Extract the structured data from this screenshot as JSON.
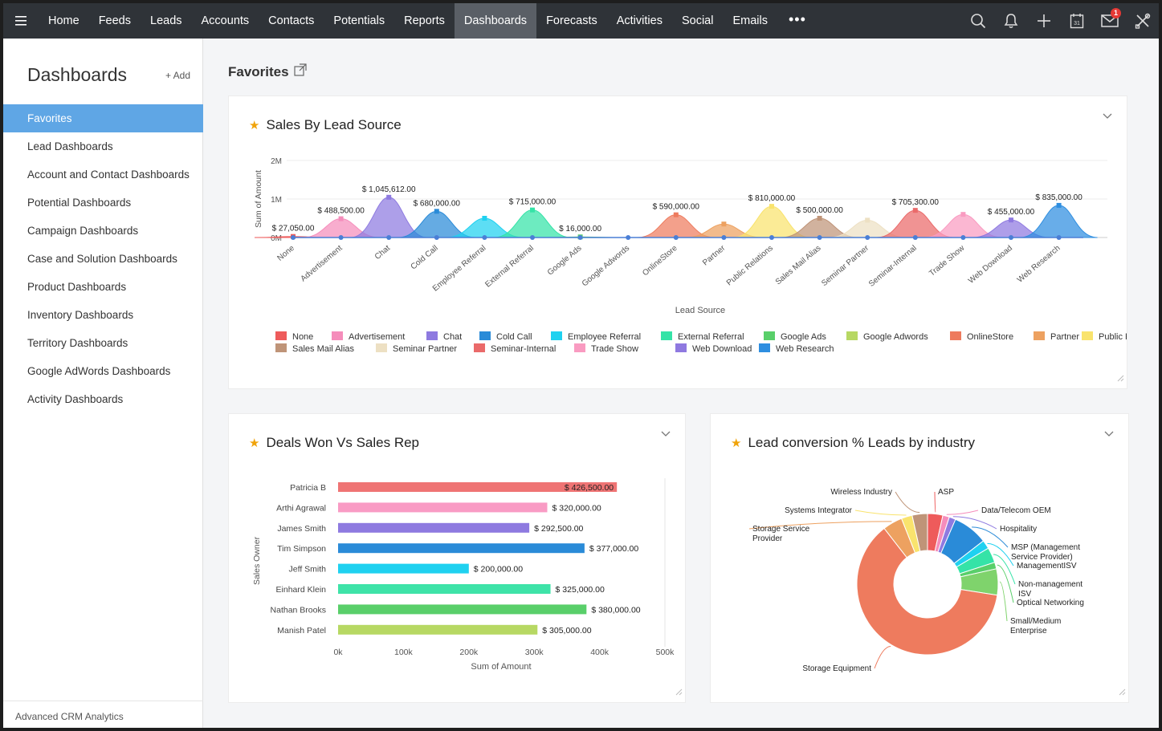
{
  "nav": {
    "items": [
      {
        "label": "Home",
        "key": "home"
      },
      {
        "label": "Feeds",
        "key": "feeds"
      },
      {
        "label": "Leads",
        "key": "leads"
      },
      {
        "label": "Accounts",
        "key": "accounts"
      },
      {
        "label": "Contacts",
        "key": "contacts"
      },
      {
        "label": "Potentials",
        "key": "potentials"
      },
      {
        "label": "Reports",
        "key": "reports"
      },
      {
        "label": "Dashboards",
        "key": "dashboards",
        "active": true
      },
      {
        "label": "Forecasts",
        "key": "forecasts"
      },
      {
        "label": "Activities",
        "key": "activities"
      },
      {
        "label": "Social",
        "key": "social"
      },
      {
        "label": "Emails",
        "key": "emails"
      }
    ],
    "more": "•••",
    "mail_badge": "1",
    "icons": [
      "search-icon",
      "bell-icon",
      "plus-icon",
      "calendar-icon",
      "mail-icon",
      "tools-icon"
    ]
  },
  "sidebar": {
    "title": "Dashboards",
    "add_label": "+ Add",
    "items": [
      {
        "label": "Favorites",
        "active": true
      },
      {
        "label": "Lead Dashboards"
      },
      {
        "label": "Account and Contact Dashboards"
      },
      {
        "label": "Potential Dashboards"
      },
      {
        "label": "Campaign Dashboards"
      },
      {
        "label": "Case and Solution Dashboards"
      },
      {
        "label": "Product Dashboards"
      },
      {
        "label": "Inventory Dashboards"
      },
      {
        "label": "Territory Dashboards"
      },
      {
        "label": "Google AdWords Dashboards"
      },
      {
        "label": "Activity Dashboards"
      }
    ],
    "footer": "Advanced CRM Analytics"
  },
  "main": {
    "title": "Favorites"
  },
  "colors": {
    "accent": "#5fa6e5",
    "star": "#f0a30a",
    "nav_bg": "#2f3338"
  },
  "chart_data": [
    {
      "type": "area",
      "title": "Sales By Lead Source",
      "xlabel": "Lead Source",
      "ylabel": "Sum of Amount",
      "yticks": [
        "0M",
        "1M",
        "2M"
      ],
      "ylim": [
        0,
        2000000
      ],
      "grid": true,
      "legend_position": "bottom",
      "categories": [
        "None",
        "Advertisement",
        "Chat",
        "Cold Call",
        "Employee Referral",
        "External Referral",
        "Google Ads",
        "Google Adwords",
        "OnlineStore",
        "Partner",
        "Public Relations",
        "Sales Mail Alias",
        "Seminar Partner",
        "Seminar-Internal",
        "Trade Show",
        "Web Download",
        "Web Research"
      ],
      "values": [
        27050,
        488500,
        1045612,
        680000,
        500000,
        715000,
        16000,
        0,
        590000,
        350000,
        810000,
        500000,
        450000,
        705300,
        600000,
        455000,
        835000
      ],
      "labels": [
        "$ 27,050.00",
        "$ 488,500.00",
        "$ 1,045,612.00",
        "$ 680,000.00",
        "",
        "$ 715,000.00",
        "$ 16,000.00",
        "",
        "$ 590,000.00",
        "",
        "$ 810,000.00",
        "$ 500,000.00",
        "",
        "$ 705,300.00",
        "",
        "$ 455,000.00",
        "$ 835,000.00"
      ],
      "colors": [
        "#ee5b5b",
        "#f58dbb",
        "#8e7ae0",
        "#2a8bd8",
        "#1fd1f0",
        "#35e3a7",
        "#59cf6a",
        "#b7d863",
        "#ee7b5e",
        "#eda160",
        "#f9e36d",
        "#bf9478",
        "#ede0c3",
        "#ea6a6a",
        "#f99bc1",
        "#8f79e0",
        "#2e8ee0"
      ],
      "legend": [
        "None",
        "Advertisement",
        "Chat",
        "Cold Call",
        "Employee Referral",
        "External Referral",
        "Google Ads",
        "Google Adwords",
        "OnlineStore",
        "Partner",
        "Public Relations",
        "Sales Mail Alias",
        "Seminar Partner",
        "Seminar-Internal",
        "Trade Show",
        "Web Download",
        "Web Research"
      ]
    },
    {
      "type": "bar",
      "orientation": "horizontal",
      "title": "Deals Won Vs Sales Rep",
      "xlabel": "Sum of Amount",
      "ylabel": "Sales Owner",
      "xticks": [
        "0k",
        "100k",
        "200k",
        "300k",
        "400k",
        "500k"
      ],
      "xlim": [
        0,
        500000
      ],
      "categories": [
        "Patricia B",
        "Arthi Agrawal",
        "James Smith",
        "Tim Simpson",
        "Jeff Smith",
        "Einhard Klein",
        "Nathan Brooks",
        "Manish Patel"
      ],
      "values": [
        426500,
        320000,
        292500,
        377000,
        200000,
        325000,
        380000,
        305000
      ],
      "labels": [
        "$ 426,500.00",
        "$ 320,000.00",
        "$ 292,500.00",
        "$ 377,000.00",
        "$ 200,000.00",
        "$ 325,000.00",
        "$ 380,000.00",
        "$ 305,000.00"
      ],
      "colors": [
        "#ef7474",
        "#f99bc4",
        "#8e7ae0",
        "#2a8bd8",
        "#1fd1f0",
        "#3ee3a8",
        "#59cf6a",
        "#b7d863"
      ]
    },
    {
      "type": "pie",
      "donut": true,
      "title": "Lead conversion % Leads by industry",
      "categories": [
        "ASP",
        "Data/Telecom OEM",
        "Hospitality",
        "MSP (Management Service Provider)",
        "ManagementISV",
        "Non-management ISV",
        "Optical Networking",
        "Small/Medium Enterprise",
        "Storage Equipment",
        "Storage Service Provider",
        "Systems Integrator",
        "Wireless Industry"
      ],
      "values": [
        3.5,
        1.5,
        1.5,
        8,
        2,
        3.5,
        1.5,
        6,
        62,
        4.5,
        2.5,
        3.5
      ],
      "colors": [
        "#ee5b5b",
        "#f58dbb",
        "#8e7ae0",
        "#2a8bd8",
        "#1fd1f0",
        "#35e3a7",
        "#59cf6a",
        "#7fd36c",
        "#ee7b5e",
        "#eda160",
        "#f9e36d",
        "#bf9478"
      ]
    }
  ]
}
